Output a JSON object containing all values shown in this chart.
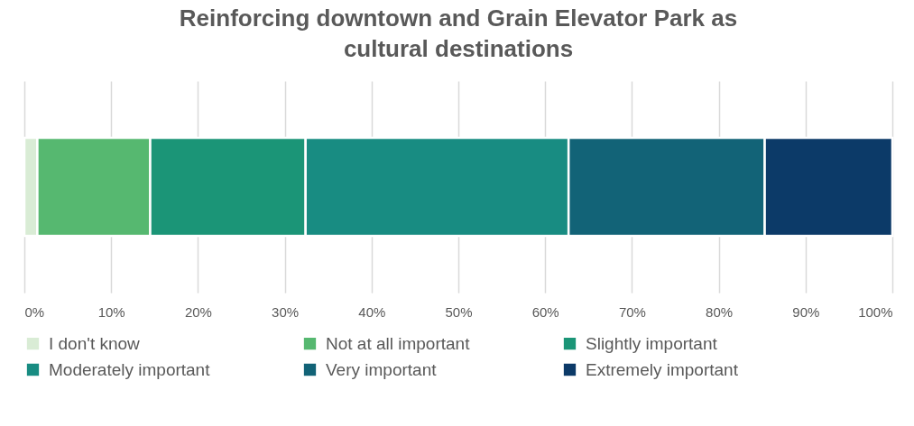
{
  "chart_data": {
    "type": "bar",
    "orientation": "horizontal",
    "stacked": true,
    "title": "Reinforcing downtown and Grain Elevator Park as cultural destinations",
    "categories": [
      null
    ],
    "series": [
      {
        "name": "I don't know",
        "color": "#d9ecd5",
        "values": [
          1.5
        ]
      },
      {
        "name": "Not at all important",
        "color": "#56b870",
        "values": [
          13.0
        ]
      },
      {
        "name": "Slightly important",
        "color": "#1b9577",
        "values": [
          17.9
        ]
      },
      {
        "name": "Moderately important",
        "color": "#188c82",
        "values": [
          30.3
        ]
      },
      {
        "name": "Very important",
        "color": "#126377",
        "values": [
          22.6
        ]
      },
      {
        "name": "Extremely important",
        "color": "#0c3a68",
        "values": [
          14.7
        ]
      }
    ],
    "xlim": [
      0,
      100
    ],
    "xticks": [
      {
        "value": 0,
        "label": "0%"
      },
      {
        "value": 10,
        "label": "10%"
      },
      {
        "value": 20,
        "label": "20%"
      },
      {
        "value": 30,
        "label": "30%"
      },
      {
        "value": 40,
        "label": "40%"
      },
      {
        "value": 50,
        "label": "50%"
      },
      {
        "value": 60,
        "label": "60%"
      },
      {
        "value": 70,
        "label": "70%"
      },
      {
        "value": 80,
        "label": "80%"
      },
      {
        "value": 90,
        "label": "90%"
      },
      {
        "value": 100,
        "label": "100%"
      }
    ],
    "grid": "x",
    "legend": "bottom",
    "tick_labels": "x"
  }
}
